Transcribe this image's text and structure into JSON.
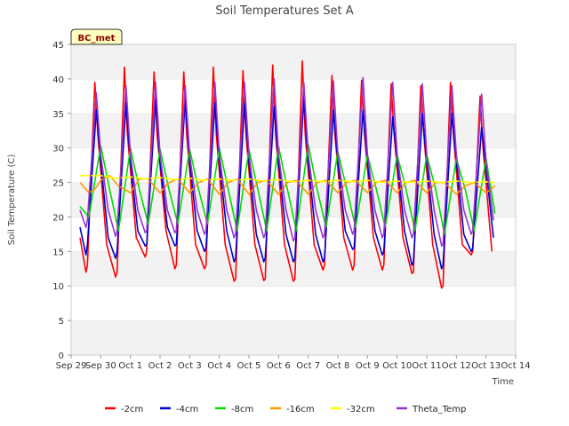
{
  "chart_data": {
    "type": "line",
    "title": "Soil Temperatures Set A",
    "xlabel": "Time",
    "ylabel": "Soil Temperature (C)",
    "badge": "BC_met",
    "ylim": [
      0,
      45
    ],
    "xlim": [
      0,
      15
    ],
    "yticks": [
      0,
      5,
      10,
      15,
      20,
      25,
      30,
      35,
      40,
      45
    ],
    "xticks": [
      {
        "value": 0,
        "label": "Sep 29"
      },
      {
        "value": 1,
        "label": "Sep 30"
      },
      {
        "value": 2,
        "label": "Oct 1"
      },
      {
        "value": 3,
        "label": "Oct 2"
      },
      {
        "value": 4,
        "label": "Oct 3"
      },
      {
        "value": 5,
        "label": "Oct 4"
      },
      {
        "value": 6,
        "label": "Oct 5"
      },
      {
        "value": 7,
        "label": "Oct 6"
      },
      {
        "value": 8,
        "label": "Oct 7"
      },
      {
        "value": 9,
        "label": "Oct 8"
      },
      {
        "value": 10,
        "label": "Oct 9"
      },
      {
        "value": 11,
        "label": "Oct 10"
      },
      {
        "value": 12,
        "label": "Oct 11"
      },
      {
        "value": 13,
        "label": "Oct 12"
      },
      {
        "value": 14,
        "label": "Oct 13"
      },
      {
        "value": 15,
        "label": "Oct 14"
      }
    ],
    "grid": "horizontal bands",
    "legend_position": "bottom",
    "series": [
      {
        "name": "-2cm",
        "color": "#ff0000",
        "x": [
          0.3,
          0.5,
          0.55,
          0.8,
          0.9,
          1.2,
          1.5,
          1.55,
          1.8,
          1.9,
          2.2,
          2.5,
          2.55,
          2.8,
          2.9,
          3.2,
          3.5,
          3.55,
          3.8,
          3.9,
          4.2,
          4.5,
          4.55,
          4.8,
          4.9,
          5.2,
          5.5,
          5.55,
          5.8,
          5.9,
          6.2,
          6.5,
          6.55,
          6.8,
          6.9,
          7.2,
          7.5,
          7.55,
          7.8,
          7.9,
          8.2,
          8.5,
          8.55,
          8.8,
          8.9,
          9.2,
          9.5,
          9.55,
          9.8,
          9.9,
          10.2,
          10.5,
          10.55,
          10.8,
          10.9,
          11.2,
          11.5,
          11.55,
          11.8,
          11.9,
          12.2,
          12.5,
          12.55,
          12.8,
          12.9,
          13.2,
          13.5,
          13.55,
          13.8,
          13.9,
          14.2
        ],
        "y": [
          17,
          12,
          13,
          39.5,
          32,
          16,
          11.3,
          12,
          41.7,
          32,
          17,
          14.2,
          15,
          41,
          32,
          18,
          12.5,
          13,
          41,
          32,
          16,
          12.5,
          13,
          41.7,
          32,
          16,
          10.7,
          11,
          41.2,
          32,
          16,
          10.8,
          11,
          42,
          32,
          16,
          10.7,
          11,
          42.6,
          32,
          16,
          12.3,
          13,
          40.5,
          32,
          17,
          12.3,
          13,
          39.8,
          32,
          17,
          12.3,
          13,
          39.3,
          32,
          17,
          11.8,
          12,
          39,
          32,
          16,
          9.7,
          10,
          39.5,
          32,
          16,
          14.5,
          15,
          37.5,
          30,
          15
        ]
      },
      {
        "name": "-4cm",
        "color": "#0000cc",
        "x": [
          0.3,
          0.5,
          0.55,
          0.85,
          1.0,
          1.25,
          1.5,
          1.55,
          1.85,
          2.0,
          2.25,
          2.5,
          2.55,
          2.85,
          3.0,
          3.25,
          3.5,
          3.55,
          3.85,
          4.0,
          4.25,
          4.5,
          4.55,
          4.85,
          5.0,
          5.25,
          5.5,
          5.55,
          5.85,
          6.0,
          6.25,
          6.5,
          6.55,
          6.85,
          7.0,
          7.25,
          7.5,
          7.55,
          7.85,
          8.0,
          8.25,
          8.5,
          8.55,
          8.85,
          9.0,
          9.25,
          9.5,
          9.55,
          9.85,
          10.0,
          10.25,
          10.5,
          10.55,
          10.85,
          11.0,
          11.25,
          11.5,
          11.55,
          11.85,
          12.0,
          12.25,
          12.5,
          12.55,
          12.85,
          13.0,
          13.25,
          13.5,
          13.55,
          13.85,
          14.0,
          14.25
        ],
        "y": [
          18.5,
          14.5,
          16,
          35.5,
          28,
          17,
          14,
          15,
          36.5,
          28,
          18,
          15.8,
          16,
          37,
          28,
          18.5,
          15.8,
          16,
          37,
          28,
          18,
          15,
          15.5,
          36.5,
          28,
          18,
          13.5,
          14,
          36.5,
          28,
          17.5,
          13.5,
          14,
          36,
          28,
          17.5,
          13.5,
          14,
          37.5,
          28,
          17.5,
          13.5,
          14,
          35.5,
          28,
          18,
          15.3,
          15.5,
          35.5,
          28,
          18,
          14.5,
          15,
          34.5,
          28,
          18,
          13,
          13.5,
          35,
          28,
          17.5,
          12.5,
          13,
          35,
          28,
          17.5,
          15,
          15.5,
          33,
          27,
          17
        ]
      },
      {
        "name": "-8cm",
        "color": "#00dd00",
        "x": [
          0.3,
          0.6,
          1.0,
          1.3,
          1.6,
          2.0,
          2.3,
          2.6,
          3.0,
          3.3,
          3.6,
          4.0,
          4.3,
          4.6,
          5.0,
          5.3,
          5.6,
          6.0,
          6.3,
          6.6,
          7.0,
          7.3,
          7.6,
          8.0,
          8.3,
          8.6,
          9.0,
          9.3,
          9.6,
          10.0,
          10.3,
          10.6,
          11.0,
          11.3,
          11.6,
          12.0,
          12.3,
          12.6,
          13.0,
          13.3,
          13.6,
          14.0,
          14.3
        ],
        "y": [
          21.5,
          20,
          30.3,
          24,
          18,
          30,
          24,
          19,
          29.8,
          24,
          19,
          29.8,
          24,
          19,
          30,
          24,
          18,
          29.8,
          24,
          18,
          30.2,
          24,
          18,
          30.5,
          24,
          18.5,
          29.5,
          24,
          18.5,
          29,
          24,
          18.5,
          29,
          24,
          18,
          29,
          24,
          17.5,
          28.5,
          24,
          18,
          28.5,
          20.5
        ]
      },
      {
        "name": "-16cm",
        "color": "#ff9900",
        "x": [
          0.3,
          0.6,
          0.8,
          1.0,
          1.3,
          1.6,
          2.0,
          2.3,
          2.6,
          3.0,
          3.3,
          3.6,
          4.0,
          4.3,
          4.6,
          5.0,
          5.3,
          5.6,
          6.0,
          6.3,
          6.6,
          7.0,
          7.3,
          7.6,
          8.0,
          8.3,
          8.6,
          9.0,
          9.3,
          9.6,
          10.0,
          10.3,
          10.6,
          11.0,
          11.3,
          11.6,
          12.0,
          12.3,
          12.6,
          13.0,
          13.3,
          13.6,
          14.0,
          14.3
        ],
        "y": [
          25,
          23.5,
          24,
          25.3,
          26,
          24.5,
          23.5,
          25.5,
          25.5,
          23.5,
          25,
          25.5,
          23.5,
          25,
          25.5,
          23.3,
          25,
          25.5,
          23.3,
          25,
          25.3,
          23.3,
          25,
          25.3,
          23.3,
          25,
          25.3,
          23.5,
          25,
          25.3,
          23.5,
          25,
          25.3,
          23.5,
          25,
          25.3,
          23.5,
          25,
          25,
          23.3,
          24.5,
          25,
          23.5,
          24.5
        ]
      },
      {
        "name": "-32cm",
        "color": "#ffff00",
        "x": [
          0.3,
          1.0,
          1.5,
          2.0,
          2.5,
          3.0,
          3.5,
          4.0,
          4.5,
          5.0,
          5.5,
          6.0,
          6.5,
          7.0,
          7.5,
          8.0,
          8.5,
          9.0,
          9.5,
          10.0,
          10.5,
          11.0,
          11.5,
          12.0,
          12.5,
          13.0,
          13.5,
          14.0,
          14.3
        ],
        "y": [
          26,
          26,
          25.6,
          25.8,
          25.5,
          25.7,
          25.4,
          25.6,
          25.3,
          25.5,
          25.3,
          25.5,
          25.2,
          25.4,
          25.1,
          25.3,
          25.1,
          25.3,
          25.1,
          25.3,
          25.0,
          25.2,
          25.0,
          25.2,
          25.0,
          25.2,
          25.0,
          25.1,
          25.0
        ]
      },
      {
        "name": "Theta_Temp",
        "color": "#9933cc",
        "x": [
          0.3,
          0.5,
          0.55,
          0.85,
          1.0,
          1.25,
          1.5,
          1.55,
          1.85,
          2.0,
          2.25,
          2.5,
          2.55,
          2.85,
          3.0,
          3.25,
          3.5,
          3.55,
          3.85,
          4.0,
          4.25,
          4.5,
          4.55,
          4.85,
          5.0,
          5.25,
          5.5,
          5.55,
          5.85,
          6.0,
          6.25,
          6.5,
          6.55,
          6.85,
          7.0,
          7.25,
          7.5,
          7.55,
          7.85,
          8.0,
          8.25,
          8.5,
          8.55,
          8.85,
          9.0,
          9.25,
          9.5,
          9.55,
          9.85,
          10.0,
          10.25,
          10.5,
          10.55,
          10.85,
          11.0,
          11.25,
          11.5,
          11.55,
          11.85,
          12.0,
          12.25,
          12.5,
          12.55,
          12.85,
          13.0,
          13.25,
          13.5,
          13.55,
          13.85,
          14.0,
          14.25
        ],
        "y": [
          21,
          18.5,
          19.5,
          38,
          29,
          21,
          17.2,
          18,
          39,
          29,
          21,
          17.7,
          18,
          39.5,
          29,
          21,
          17.7,
          18,
          39,
          29,
          21,
          17.5,
          18,
          39.5,
          29,
          21,
          17,
          17.5,
          39.5,
          29,
          21,
          17,
          17.5,
          40,
          29,
          21,
          16.5,
          17,
          39.5,
          29,
          21,
          17,
          17.5,
          39.7,
          29,
          21,
          17.5,
          18,
          40.2,
          29,
          21,
          17,
          17.5,
          39.5,
          29,
          21,
          17,
          17.5,
          39.3,
          29,
          21,
          15.8,
          16,
          39,
          29,
          21,
          17.5,
          18,
          37.8,
          28,
          19.5
        ]
      }
    ]
  }
}
